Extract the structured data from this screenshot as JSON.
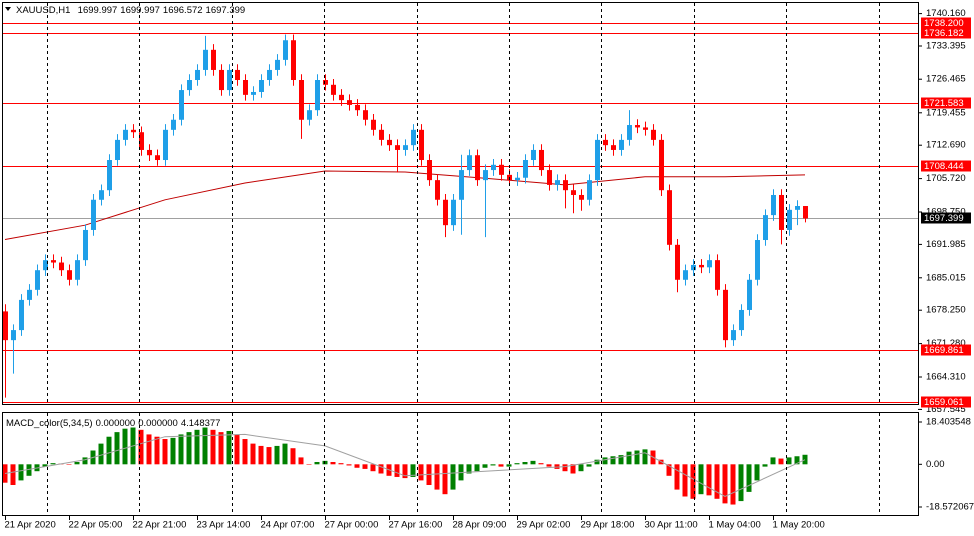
{
  "chart_data": {
    "type": "candlestick",
    "title": "XAUUSD,H1",
    "header_values": [
      1699.997,
      1699.997,
      1696.572,
      1697.399
    ],
    "up_color": "#1f9fe8",
    "down_color": "#ff0000",
    "xlim": [
      -0.375,
      114.125
    ],
    "xticks": [
      {
        "value": 0,
        "label": "21 Apr 2020"
      },
      {
        "value": 8,
        "label": "22 Apr 05:00"
      },
      {
        "value": 16,
        "label": "22 Apr 21:00"
      },
      {
        "value": 24,
        "label": "23 Apr 14:00"
      },
      {
        "value": 32,
        "label": "24 Apr 07:00"
      },
      {
        "value": 40,
        "label": "27 Apr 00:00"
      },
      {
        "value": 48,
        "label": "27 Apr 16:00"
      },
      {
        "value": 56,
        "label": "28 Apr 09:00"
      },
      {
        "value": 64,
        "label": "29 Apr 02:00"
      },
      {
        "value": 72,
        "label": "29 Apr 18:00"
      },
      {
        "value": 80,
        "label": "30 Apr 11:00"
      },
      {
        "value": 88,
        "label": "1 May 04:00"
      },
      {
        "value": 96,
        "label": "1 May 20:00"
      }
    ],
    "ylim": [
      1657.545,
      1740.16
    ],
    "yticks": [
      {
        "value": 1740.16,
        "label": "1740.160"
      },
      1733.395,
      1726.465,
      1719.455,
      {
        "value": 1712.69,
        "label": "1712.690"
      },
      {
        "value": 1705.72,
        "label": "1705.720"
      },
      {
        "value": 1698.75,
        "label": "1698.750"
      },
      1691.985,
      1685.015,
      {
        "value": 1678.25,
        "label": "1678.250"
      },
      {
        "value": 1671.28,
        "label": "1671.280"
      },
      {
        "value": 1664.31,
        "label": "1664.310"
      },
      1657.545
    ],
    "levels": [
      {
        "value": 1738.2,
        "label": "1738.200"
      },
      1736.182,
      1721.583,
      1708.444,
      1669.861,
      1659.061
    ],
    "level_color": "#ff0000",
    "current_price": 1697.399,
    "candles": [
      [
        1678.0,
        1679.5,
        1660.0,
        1672.0
      ],
      [
        1672.0,
        1675.3,
        1665.0,
        1674.1
      ],
      [
        1674.1,
        1681.6,
        1672.9,
        1680.4
      ],
      [
        1680.4,
        1683.7,
        1679.2,
        1682.5
      ],
      [
        1682.5,
        1687.8,
        1681.3,
        1686.6
      ],
      [
        1686.6,
        1689.9,
        1685.4,
        1688.7
      ],
      [
        1688.7,
        1689.9,
        1687.0,
        1688.2
      ],
      [
        1688.2,
        1689.4,
        1685.4,
        1686.6
      ],
      [
        1686.6,
        1687.8,
        1683.4,
        1684.6
      ],
      [
        1684.6,
        1689.9,
        1683.4,
        1688.7
      ],
      [
        1688.7,
        1696.2,
        1687.5,
        1695.0
      ],
      [
        1695.0,
        1702.5,
        1693.8,
        1701.3
      ],
      [
        1701.3,
        1704.5,
        1700.1,
        1703.3
      ],
      [
        1703.3,
        1710.8,
        1702.1,
        1709.6
      ],
      [
        1709.6,
        1715.0,
        1708.4,
        1713.8
      ],
      [
        1713.8,
        1717.1,
        1712.6,
        1715.9
      ],
      [
        1715.9,
        1717.1,
        1714.2,
        1715.4
      ],
      [
        1715.4,
        1716.6,
        1710.5,
        1711.7
      ],
      [
        1711.7,
        1712.9,
        1709.4,
        1710.6
      ],
      [
        1710.6,
        1711.8,
        1708.4,
        1709.6
      ],
      [
        1709.6,
        1717.1,
        1708.4,
        1715.9
      ],
      [
        1715.9,
        1719.2,
        1714.7,
        1718.0
      ],
      [
        1718.0,
        1725.4,
        1716.8,
        1724.2
      ],
      [
        1724.2,
        1727.5,
        1723.0,
        1726.3
      ],
      [
        1726.3,
        1729.6,
        1725.1,
        1728.4
      ],
      [
        1728.4,
        1735.5,
        1727.2,
        1732.6
      ],
      [
        1732.6,
        1733.8,
        1727.2,
        1728.4
      ],
      [
        1728.4,
        1729.6,
        1723.0,
        1724.2
      ],
      [
        1724.2,
        1729.6,
        1723.0,
        1728.4
      ],
      [
        1728.4,
        1729.6,
        1725.1,
        1726.3
      ],
      [
        1726.3,
        1727.5,
        1722.0,
        1723.2
      ],
      [
        1723.2,
        1725.0,
        1722.0,
        1723.8
      ],
      [
        1723.8,
        1727.5,
        1722.6,
        1726.3
      ],
      [
        1726.3,
        1729.6,
        1725.1,
        1728.4
      ],
      [
        1728.4,
        1731.7,
        1727.2,
        1730.5
      ],
      [
        1730.5,
        1735.8,
        1729.3,
        1734.6
      ],
      [
        1734.6,
        1735.8,
        1725.1,
        1726.3
      ],
      [
        1726.3,
        1727.5,
        1714.0,
        1718.0
      ],
      [
        1718.0,
        1721.2,
        1716.8,
        1720.0
      ],
      [
        1720.0,
        1727.5,
        1718.8,
        1726.3
      ],
      [
        1726.3,
        1727.5,
        1724.1,
        1725.3
      ],
      [
        1725.3,
        1726.5,
        1722.0,
        1723.2
      ],
      [
        1723.2,
        1724.4,
        1720.9,
        1722.1
      ],
      [
        1722.1,
        1723.3,
        1719.9,
        1721.1
      ],
      [
        1721.1,
        1722.3,
        1718.8,
        1720.0
      ],
      [
        1720.0,
        1721.2,
        1716.8,
        1718.0
      ],
      [
        1718.0,
        1719.2,
        1714.7,
        1715.9
      ],
      [
        1715.9,
        1717.1,
        1712.6,
        1713.8
      ],
      [
        1713.8,
        1715.0,
        1711.5,
        1712.7
      ],
      [
        1712.7,
        1713.9,
        1707.0,
        1711.7
      ],
      [
        1711.7,
        1713.9,
        1710.5,
        1712.7
      ],
      [
        1712.7,
        1717.1,
        1711.5,
        1715.9
      ],
      [
        1715.9,
        1717.1,
        1708.4,
        1709.6
      ],
      [
        1709.6,
        1710.8,
        1704.2,
        1705.4
      ],
      [
        1705.4,
        1706.6,
        1700.1,
        1701.3
      ],
      [
        1701.3,
        1702.5,
        1693.5,
        1696.0
      ],
      [
        1696.0,
        1702.5,
        1694.8,
        1701.3
      ],
      [
        1701.3,
        1710.7,
        1694.0,
        1707.5
      ],
      [
        1707.5,
        1711.8,
        1706.3,
        1710.6
      ],
      [
        1710.6,
        1711.8,
        1704.2,
        1705.4
      ],
      [
        1705.4,
        1708.7,
        1693.5,
        1707.5
      ],
      [
        1707.5,
        1709.8,
        1706.3,
        1708.6
      ],
      [
        1708.6,
        1709.8,
        1705.3,
        1706.5
      ],
      [
        1706.5,
        1707.7,
        1704.2,
        1705.4
      ],
      [
        1705.4,
        1707.1,
        1704.2,
        1705.9
      ],
      [
        1705.9,
        1710.8,
        1704.7,
        1709.6
      ],
      [
        1709.6,
        1712.9,
        1708.4,
        1711.7
      ],
      [
        1711.7,
        1712.9,
        1706.3,
        1707.5
      ],
      [
        1707.5,
        1708.7,
        1703.2,
        1704.4
      ],
      [
        1704.4,
        1706.6,
        1703.2,
        1705.4
      ],
      [
        1705.4,
        1706.6,
        1699.5,
        1703.3
      ],
      [
        1703.3,
        1704.5,
        1698.5,
        1702.3
      ],
      [
        1702.3,
        1703.5,
        1699.0,
        1701.3
      ],
      [
        1701.3,
        1706.6,
        1700.1,
        1705.4
      ],
      [
        1705.4,
        1715.0,
        1704.2,
        1713.8
      ],
      [
        1713.8,
        1715.0,
        1711.5,
        1712.7
      ],
      [
        1712.7,
        1713.9,
        1710.5,
        1711.7
      ],
      [
        1711.7,
        1715.0,
        1710.5,
        1713.8
      ],
      [
        1713.8,
        1720.0,
        1712.6,
        1716.9
      ],
      [
        1716.9,
        1718.1,
        1715.2,
        1716.4
      ],
      [
        1716.4,
        1717.6,
        1714.7,
        1715.9
      ],
      [
        1715.9,
        1717.1,
        1712.6,
        1713.8
      ],
      [
        1713.8,
        1715.0,
        1702.1,
        1703.3
      ],
      [
        1703.3,
        1704.5,
        1690.7,
        1691.9
      ],
      [
        1691.9,
        1693.1,
        1682.0,
        1684.6
      ],
      [
        1684.6,
        1687.8,
        1683.4,
        1686.6
      ],
      [
        1686.6,
        1688.9,
        1685.4,
        1687.7
      ],
      [
        1687.7,
        1688.9,
        1686.0,
        1687.2
      ],
      [
        1687.2,
        1689.9,
        1686.0,
        1688.7
      ],
      [
        1688.7,
        1689.9,
        1681.3,
        1682.5
      ],
      [
        1682.5,
        1683.7,
        1670.5,
        1672.0
      ],
      [
        1672.0,
        1675.3,
        1670.8,
        1674.1
      ],
      [
        1674.1,
        1679.5,
        1672.9,
        1678.3
      ],
      [
        1678.3,
        1685.8,
        1677.1,
        1684.6
      ],
      [
        1684.6,
        1694.1,
        1683.4,
        1692.9
      ],
      [
        1692.9,
        1699.3,
        1691.7,
        1698.1
      ],
      [
        1698.1,
        1703.5,
        1696.9,
        1702.3
      ],
      [
        1702.3,
        1703.5,
        1692.0,
        1695.0
      ],
      [
        1695.0,
        1700.4,
        1693.8,
        1699.2
      ],
      [
        1699.2,
        1701.2,
        1696.0,
        1699.997
      ],
      [
        1699.997,
        1699.997,
        1696.572,
        1697.399
      ]
    ],
    "ma": {
      "color": "#c00000",
      "x": [
        0,
        10,
        20,
        30,
        40,
        50,
        60,
        70,
        80,
        90,
        100
      ],
      "values": [
        1693.0,
        1696.0,
        1701.3,
        1704.8,
        1707.3,
        1707.1,
        1705.8,
        1704.4,
        1706.1,
        1706.1,
        1706.5
      ]
    },
    "macd": {
      "title": "MACD_color(5,34,5)",
      "header_values": [
        {
          "value": 0,
          "label": "0.000000"
        },
        {
          "value": 0,
          "label": "0.000000"
        },
        4.148377
      ],
      "ylim": [
        -18.572067,
        18.403548
      ],
      "yticks": [
        18.403548,
        {
          "value": 0,
          "label": "0.00"
        },
        -18.572067
      ],
      "up_color": "#008000",
      "down_color": "#ff0000",
      "values": [
        -8,
        -9,
        -7,
        -5,
        -3,
        -1,
        0.5,
        0.3,
        0,
        1,
        3,
        6,
        9,
        12,
        14,
        15.5,
        16,
        15,
        13,
        12,
        11,
        11.5,
        13,
        14,
        15,
        16,
        15,
        14,
        14.5,
        13,
        11,
        9,
        8,
        7.5,
        8,
        9,
        7,
        3,
        0,
        1,
        1.5,
        1,
        0.5,
        -0.5,
        -1.5,
        -2,
        -3,
        -4,
        -5,
        -5.5,
        -6,
        -5.5,
        -7,
        -9,
        -11,
        -13,
        -11,
        -7,
        -4,
        -3,
        -1.5,
        -0.5,
        -1,
        -1,
        0.5,
        1,
        1.5,
        0.5,
        -1,
        -2,
        -3,
        -4,
        -3,
        -1,
        2,
        3,
        3.5,
        4,
        5.5,
        6,
        6.5,
        6,
        2,
        -5,
        -11,
        -14,
        -15,
        -13,
        -13.5,
        -15,
        -17,
        -17.5,
        -16,
        -12,
        -7,
        -1,
        3,
        2.5,
        3,
        3.5,
        4.148377
      ],
      "signal": {
        "color": "#a0a0a0",
        "x": [
          0,
          10,
          20,
          30,
          40,
          50,
          60,
          70,
          80,
          90,
          100
        ],
        "values": [
          -4,
          2,
          12,
          13,
          8,
          -5,
          -3,
          -1,
          5,
          -14,
          2
        ]
      }
    }
  }
}
